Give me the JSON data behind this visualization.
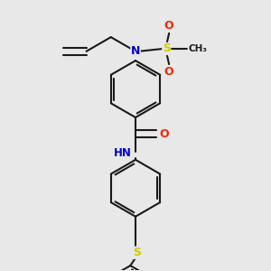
{
  "background_color": "#e8e8e8",
  "bond_color": "#1a1a1a",
  "bond_width": 1.5,
  "colors": {
    "N": "#0000cc",
    "O": "#ff2200",
    "S": "#cccc00",
    "C": "#1a1a1a",
    "H": "#555555"
  },
  "figsize": [
    3.0,
    3.0
  ],
  "dpi": 100,
  "xlim": [
    -1.8,
    1.8
  ],
  "ylim": [
    -3.2,
    2.0
  ]
}
